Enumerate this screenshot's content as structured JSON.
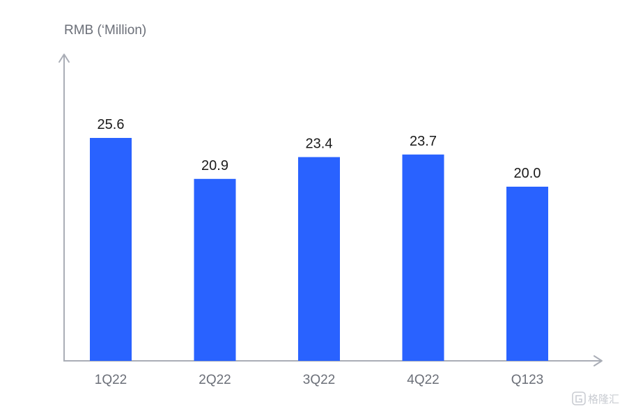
{
  "chart_data": {
    "type": "bar",
    "title": "",
    "xlabel": "",
    "ylabel": "RMB (‘Million)",
    "categories": [
      "1Q22",
      "2Q22",
      "3Q22",
      "4Q22",
      "Q123"
    ],
    "values": [
      25.6,
      20.9,
      23.4,
      23.7,
      20.0
    ],
    "value_labels": [
      "25.6",
      "20.9",
      "23.4",
      "23.7",
      "20.0"
    ],
    "ylim": [
      0,
      30
    ],
    "grid": false,
    "legend": "none",
    "bar_color": "#2962ff"
  },
  "watermark": {
    "text": "格隆汇",
    "color": "#c9ccd2"
  }
}
